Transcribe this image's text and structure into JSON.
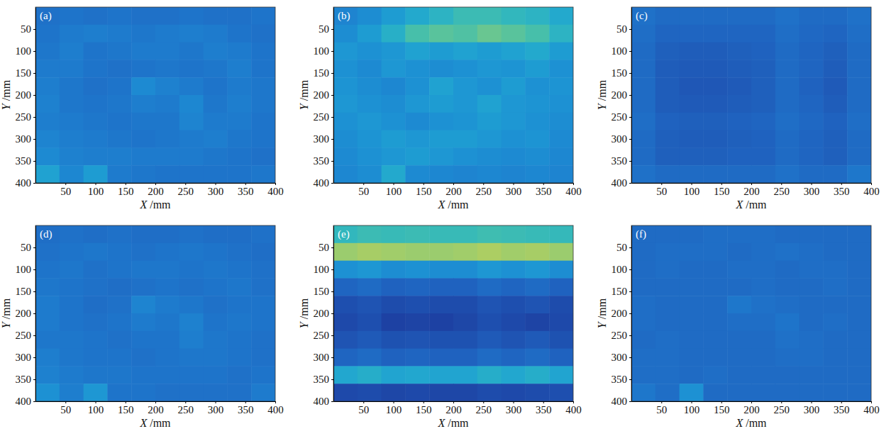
{
  "chart_data": [
    {
      "type": "heatmap",
      "title": "(a)",
      "xlabel": "X /mm",
      "ylabel": "Y /mm",
      "xlim": [
        0,
        400
      ],
      "ylim": [
        0,
        400
      ],
      "xticks": [
        50,
        100,
        150,
        200,
        250,
        300,
        350,
        400
      ],
      "yticks": [
        50,
        100,
        150,
        200,
        250,
        300,
        350,
        400
      ],
      "zlim": [
        0,
        1
      ],
      "cells": [
        [
          0.26,
          0.27,
          0.26,
          0.27,
          0.26,
          0.26,
          0.27,
          0.26,
          0.26,
          0.27
        ],
        [
          0.27,
          0.29,
          0.3,
          0.29,
          0.28,
          0.29,
          0.3,
          0.29,
          0.27,
          0.26
        ],
        [
          0.28,
          0.3,
          0.27,
          0.28,
          0.29,
          0.29,
          0.28,
          0.3,
          0.29,
          0.27
        ],
        [
          0.29,
          0.29,
          0.27,
          0.26,
          0.27,
          0.28,
          0.27,
          0.28,
          0.3,
          0.27
        ],
        [
          0.3,
          0.28,
          0.26,
          0.27,
          0.34,
          0.31,
          0.29,
          0.27,
          0.29,
          0.28
        ],
        [
          0.31,
          0.28,
          0.27,
          0.28,
          0.3,
          0.29,
          0.33,
          0.28,
          0.3,
          0.28
        ],
        [
          0.3,
          0.29,
          0.28,
          0.27,
          0.28,
          0.28,
          0.32,
          0.29,
          0.29,
          0.27
        ],
        [
          0.32,
          0.3,
          0.29,
          0.28,
          0.27,
          0.28,
          0.29,
          0.3,
          0.28,
          0.27
        ],
        [
          0.34,
          0.31,
          0.3,
          0.3,
          0.29,
          0.29,
          0.29,
          0.28,
          0.27,
          0.26
        ],
        [
          0.42,
          0.33,
          0.4,
          0.29,
          0.28,
          0.27,
          0.27,
          0.27,
          0.27,
          0.28
        ]
      ]
    },
    {
      "type": "heatmap",
      "title": "(b)",
      "xlabel": "X /mm",
      "ylabel": "Y /mm",
      "xlim": [
        0,
        400
      ],
      "ylim": [
        0,
        400
      ],
      "xticks": [
        50,
        100,
        150,
        200,
        250,
        300,
        350,
        400
      ],
      "yticks": [
        50,
        100,
        150,
        200,
        250,
        300,
        350,
        400
      ],
      "zlim": [
        0,
        1
      ],
      "cells": [
        [
          0.32,
          0.35,
          0.4,
          0.45,
          0.5,
          0.55,
          0.55,
          0.52,
          0.5,
          0.45
        ],
        [
          0.35,
          0.4,
          0.48,
          0.58,
          0.62,
          0.6,
          0.65,
          0.62,
          0.58,
          0.5
        ],
        [
          0.38,
          0.36,
          0.38,
          0.42,
          0.4,
          0.42,
          0.4,
          0.42,
          0.45,
          0.4
        ],
        [
          0.36,
          0.34,
          0.38,
          0.36,
          0.35,
          0.36,
          0.38,
          0.37,
          0.4,
          0.36
        ],
        [
          0.37,
          0.35,
          0.33,
          0.36,
          0.42,
          0.38,
          0.36,
          0.4,
          0.36,
          0.37
        ],
        [
          0.38,
          0.36,
          0.35,
          0.38,
          0.4,
          0.38,
          0.42,
          0.38,
          0.37,
          0.36
        ],
        [
          0.36,
          0.38,
          0.36,
          0.34,
          0.36,
          0.37,
          0.4,
          0.38,
          0.36,
          0.35
        ],
        [
          0.35,
          0.37,
          0.4,
          0.38,
          0.4,
          0.4,
          0.38,
          0.36,
          0.37,
          0.34
        ],
        [
          0.34,
          0.36,
          0.38,
          0.4,
          0.38,
          0.36,
          0.35,
          0.34,
          0.35,
          0.33
        ],
        [
          0.33,
          0.35,
          0.45,
          0.34,
          0.33,
          0.32,
          0.33,
          0.32,
          0.33,
          0.32
        ]
      ]
    },
    {
      "type": "heatmap",
      "title": "(c)",
      "xlabel": "X /mm",
      "ylabel": "Y /mm",
      "xlim": [
        0,
        400
      ],
      "ylim": [
        0,
        400
      ],
      "xticks": [
        50,
        100,
        150,
        200,
        250,
        300,
        350,
        400
      ],
      "yticks": [
        50,
        100,
        150,
        200,
        250,
        300,
        350,
        400
      ],
      "zlim": [
        0,
        1
      ],
      "cells": [
        [
          0.26,
          0.24,
          0.24,
          0.24,
          0.24,
          0.24,
          0.26,
          0.24,
          0.24,
          0.26
        ],
        [
          0.25,
          0.22,
          0.22,
          0.22,
          0.22,
          0.22,
          0.25,
          0.23,
          0.22,
          0.25
        ],
        [
          0.24,
          0.2,
          0.19,
          0.19,
          0.2,
          0.21,
          0.24,
          0.22,
          0.2,
          0.24
        ],
        [
          0.24,
          0.19,
          0.18,
          0.18,
          0.19,
          0.2,
          0.24,
          0.22,
          0.19,
          0.24
        ],
        [
          0.24,
          0.19,
          0.17,
          0.17,
          0.18,
          0.2,
          0.24,
          0.21,
          0.18,
          0.24
        ],
        [
          0.24,
          0.19,
          0.18,
          0.18,
          0.19,
          0.2,
          0.24,
          0.22,
          0.19,
          0.24
        ],
        [
          0.25,
          0.21,
          0.2,
          0.2,
          0.21,
          0.22,
          0.25,
          0.23,
          0.21,
          0.25
        ],
        [
          0.24,
          0.2,
          0.19,
          0.19,
          0.2,
          0.21,
          0.24,
          0.22,
          0.2,
          0.24
        ],
        [
          0.24,
          0.2,
          0.2,
          0.2,
          0.21,
          0.21,
          0.24,
          0.22,
          0.2,
          0.24
        ],
        [
          0.26,
          0.24,
          0.24,
          0.24,
          0.24,
          0.24,
          0.26,
          0.24,
          0.24,
          0.28
        ]
      ]
    },
    {
      "type": "heatmap",
      "title": "(d)",
      "xlabel": "X /mm",
      "ylabel": "Y /mm",
      "xlim": [
        0,
        400
      ],
      "ylim": [
        0,
        400
      ],
      "xticks": [
        50,
        100,
        150,
        200,
        250,
        300,
        350,
        400
      ],
      "yticks": [
        50,
        100,
        150,
        200,
        250,
        300,
        350,
        400
      ],
      "zlim": [
        0,
        1
      ],
      "cells": [
        [
          0.25,
          0.26,
          0.25,
          0.26,
          0.25,
          0.25,
          0.26,
          0.25,
          0.25,
          0.26
        ],
        [
          0.26,
          0.27,
          0.28,
          0.27,
          0.26,
          0.27,
          0.28,
          0.27,
          0.26,
          0.25
        ],
        [
          0.27,
          0.28,
          0.26,
          0.27,
          0.28,
          0.28,
          0.27,
          0.28,
          0.27,
          0.26
        ],
        [
          0.28,
          0.27,
          0.26,
          0.25,
          0.26,
          0.27,
          0.26,
          0.27,
          0.28,
          0.26
        ],
        [
          0.29,
          0.27,
          0.25,
          0.26,
          0.32,
          0.29,
          0.28,
          0.26,
          0.27,
          0.27
        ],
        [
          0.29,
          0.27,
          0.26,
          0.27,
          0.29,
          0.28,
          0.31,
          0.27,
          0.28,
          0.27
        ],
        [
          0.28,
          0.28,
          0.27,
          0.26,
          0.27,
          0.27,
          0.3,
          0.28,
          0.27,
          0.26
        ],
        [
          0.3,
          0.28,
          0.27,
          0.27,
          0.26,
          0.27,
          0.28,
          0.28,
          0.27,
          0.26
        ],
        [
          0.31,
          0.29,
          0.28,
          0.28,
          0.27,
          0.27,
          0.27,
          0.27,
          0.26,
          0.27
        ],
        [
          0.36,
          0.3,
          0.38,
          0.27,
          0.27,
          0.26,
          0.26,
          0.26,
          0.26,
          0.29
        ]
      ]
    },
    {
      "type": "heatmap",
      "title": "(e)",
      "xlabel": "X /mm",
      "ylabel": "Y /mm",
      "xlim": [
        0,
        400
      ],
      "ylim": [
        0,
        400
      ],
      "xticks": [
        50,
        100,
        150,
        200,
        250,
        300,
        350,
        400
      ],
      "yticks": [
        50,
        100,
        150,
        200,
        250,
        300,
        350,
        400
      ],
      "zlim": [
        0,
        1
      ],
      "cells": [
        [
          0.52,
          0.55,
          0.54,
          0.55,
          0.54,
          0.54,
          0.56,
          0.55,
          0.54,
          0.53
        ],
        [
          0.74,
          0.76,
          0.75,
          0.74,
          0.74,
          0.75,
          0.77,
          0.75,
          0.76,
          0.74
        ],
        [
          0.36,
          0.38,
          0.35,
          0.36,
          0.35,
          0.35,
          0.38,
          0.36,
          0.38,
          0.35
        ],
        [
          0.22,
          0.24,
          0.21,
          0.22,
          0.21,
          0.21,
          0.24,
          0.22,
          0.24,
          0.21
        ],
        [
          0.14,
          0.16,
          0.13,
          0.14,
          0.13,
          0.13,
          0.16,
          0.14,
          0.16,
          0.13
        ],
        [
          0.12,
          0.14,
          0.09,
          0.1,
          0.09,
          0.11,
          0.14,
          0.12,
          0.1,
          0.12
        ],
        [
          0.16,
          0.18,
          0.15,
          0.16,
          0.15,
          0.15,
          0.18,
          0.16,
          0.18,
          0.15
        ],
        [
          0.22,
          0.24,
          0.21,
          0.22,
          0.21,
          0.21,
          0.24,
          0.22,
          0.24,
          0.21
        ],
        [
          0.44,
          0.47,
          0.43,
          0.44,
          0.43,
          0.43,
          0.47,
          0.44,
          0.47,
          0.43
        ],
        [
          0.12,
          0.13,
          0.11,
          0.12,
          0.11,
          0.11,
          0.13,
          0.12,
          0.13,
          0.14
        ]
      ]
    },
    {
      "type": "heatmap",
      "title": "(f)",
      "xlabel": "X /mm",
      "ylabel": "Y /mm",
      "xlim": [
        0,
        400
      ],
      "ylim": [
        0,
        400
      ],
      "xticks": [
        50,
        100,
        150,
        200,
        250,
        300,
        350,
        400
      ],
      "yticks": [
        50,
        100,
        150,
        200,
        250,
        300,
        350,
        400
      ],
      "zlim": [
        0,
        1
      ],
      "cells": [
        [
          0.24,
          0.24,
          0.24,
          0.25,
          0.25,
          0.25,
          0.24,
          0.24,
          0.24,
          0.24
        ],
        [
          0.24,
          0.25,
          0.25,
          0.25,
          0.24,
          0.25,
          0.26,
          0.25,
          0.24,
          0.24
        ],
        [
          0.24,
          0.25,
          0.24,
          0.24,
          0.25,
          0.25,
          0.24,
          0.25,
          0.25,
          0.24
        ],
        [
          0.24,
          0.24,
          0.24,
          0.24,
          0.24,
          0.25,
          0.24,
          0.24,
          0.25,
          0.24
        ],
        [
          0.25,
          0.24,
          0.24,
          0.24,
          0.28,
          0.26,
          0.25,
          0.24,
          0.24,
          0.24
        ],
        [
          0.25,
          0.24,
          0.24,
          0.24,
          0.25,
          0.25,
          0.27,
          0.24,
          0.25,
          0.24
        ],
        [
          0.24,
          0.25,
          0.24,
          0.24,
          0.24,
          0.24,
          0.26,
          0.25,
          0.24,
          0.24
        ],
        [
          0.25,
          0.25,
          0.24,
          0.24,
          0.24,
          0.24,
          0.25,
          0.25,
          0.24,
          0.24
        ],
        [
          0.25,
          0.25,
          0.24,
          0.25,
          0.24,
          0.24,
          0.24,
          0.24,
          0.24,
          0.24
        ],
        [
          0.28,
          0.25,
          0.36,
          0.24,
          0.24,
          0.24,
          0.24,
          0.24,
          0.24,
          0.24
        ]
      ]
    }
  ]
}
